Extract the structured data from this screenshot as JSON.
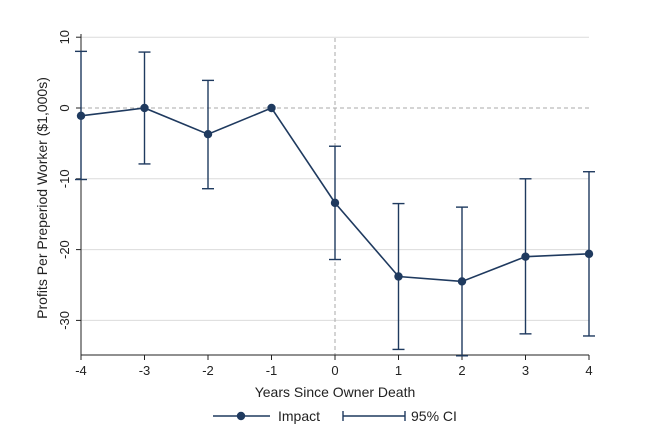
{
  "chart_data": {
    "type": "line",
    "xlabel": "Years Since Owner Death",
    "ylabel": "Profits Per Preperiod Worker ($1,000s)",
    "x": [
      -4,
      -3,
      -2,
      -1,
      0,
      1,
      2,
      3,
      4
    ],
    "xlim": [
      -4,
      4
    ],
    "ylim": [
      -35,
      10
    ],
    "xticks": [
      "-4",
      "-3",
      "-2",
      "-1",
      "0",
      "1",
      "2",
      "3",
      "4"
    ],
    "yticks": [
      "10",
      "0",
      "-10",
      "-20",
      "-30"
    ],
    "grid": true,
    "reference_lines": {
      "x": 0,
      "y": 0
    },
    "series": [
      {
        "name": "Impact",
        "values": [
          -1.1,
          0.0,
          -3.7,
          0.0,
          -13.4,
          -23.8,
          -24.5,
          -21.0,
          -20.6
        ],
        "ci_low": [
          -10.1,
          -7.9,
          -11.4,
          null,
          -21.4,
          -34.1,
          -35.0,
          -31.9,
          -32.2
        ],
        "ci_high": [
          8.0,
          7.9,
          3.9,
          null,
          -5.4,
          -13.5,
          -14.0,
          -10.0,
          -9.0
        ]
      }
    ],
    "legend": {
      "position": "bottom",
      "entries": [
        "Impact",
        "95% CI"
      ]
    },
    "colors": {
      "series": "#1f3a5f",
      "grid": "#dcdcdc",
      "reference": "#aaaaaa",
      "axis": "#222222"
    }
  }
}
